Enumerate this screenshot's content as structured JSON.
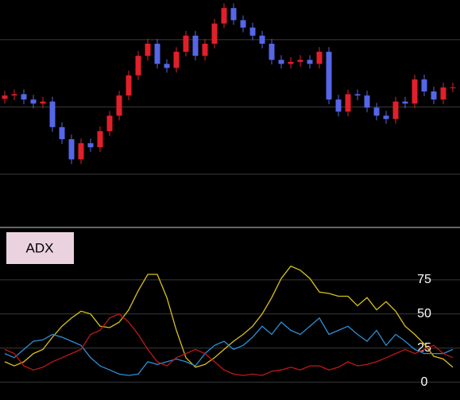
{
  "chart_data": [
    {
      "type": "candlestick",
      "open": [
        212,
        217,
        219,
        211,
        205,
        208,
        170,
        152,
        122,
        146,
        140,
        164,
        187,
        217,
        247,
        276,
        294,
        264,
        258,
        282,
        306,
        276,
        294,
        324,
        347,
        329,
        318,
        306,
        294,
        270,
        264,
        267,
        270,
        264,
        282,
        211,
        193,
        219,
        217,
        199,
        187,
        182,
        208,
        205,
        241,
        223,
        211,
        229
      ],
      "high": [
        224,
        226,
        226,
        218,
        215,
        215,
        177,
        159,
        153,
        153,
        171,
        194,
        224,
        254,
        283,
        301,
        301,
        271,
        289,
        313,
        313,
        301,
        331,
        354,
        354,
        336,
        325,
        313,
        301,
        277,
        274,
        277,
        277,
        289,
        289,
        218,
        226,
        226,
        224,
        206,
        194,
        215,
        215,
        248,
        248,
        230,
        236,
        236
      ],
      "low": [
        205,
        210,
        204,
        198,
        198,
        163,
        145,
        115,
        115,
        133,
        133,
        157,
        180,
        210,
        240,
        269,
        257,
        251,
        251,
        275,
        269,
        269,
        287,
        317,
        322,
        311,
        299,
        287,
        263,
        257,
        257,
        260,
        257,
        257,
        204,
        186,
        186,
        210,
        192,
        180,
        175,
        175,
        198,
        198,
        216,
        204,
        204,
        222
      ],
      "close": [
        217,
        219,
        211,
        205,
        208,
        170,
        152,
        122,
        146,
        140,
        164,
        187,
        217,
        247,
        276,
        294,
        264,
        258,
        282,
        306,
        276,
        294,
        324,
        347,
        329,
        318,
        306,
        294,
        270,
        264,
        267,
        270,
        264,
        282,
        211,
        193,
        219,
        217,
        199,
        187,
        182,
        208,
        205,
        241,
        223,
        211,
        229,
        229
      ],
      "up_color": "#e0202a",
      "down_color": "#5566e6",
      "ylim": [
        22,
        359
      ],
      "yticks": [
        100,
        200,
        300
      ],
      "grid": true
    },
    {
      "type": "line",
      "title": "ADX",
      "series": [
        {
          "color": "#d8c21a",
          "values": [
            15,
            12,
            15,
            21,
            24,
            33,
            41,
            47,
            52,
            50,
            41,
            40,
            44,
            53,
            67,
            79,
            79,
            62,
            38,
            18,
            11,
            13,
            18,
            24,
            30,
            35,
            41,
            50,
            62,
            76,
            85,
            82,
            76,
            66,
            65,
            63,
            63,
            56,
            62,
            53,
            59,
            52,
            41,
            35,
            28,
            19,
            17,
            11
          ]
        },
        {
          "color": "#2b8fd6",
          "values": [
            21,
            18,
            24,
            30,
            31,
            35,
            33,
            30,
            27,
            18,
            12,
            9,
            6,
            5,
            6,
            15,
            13,
            15,
            17,
            15,
            12,
            21,
            27,
            30,
            24,
            27,
            33,
            41,
            35,
            44,
            38,
            35,
            41,
            47,
            35,
            38,
            41,
            35,
            30,
            38,
            27,
            35,
            30,
            24,
            21,
            21,
            21,
            24
          ]
        },
        {
          "color": "#c01818",
          "values": [
            24,
            21,
            12,
            9,
            11,
            15,
            18,
            21,
            24,
            35,
            38,
            47,
            50,
            44,
            35,
            24,
            15,
            12,
            18,
            21,
            24,
            21,
            15,
            9,
            6,
            5,
            6,
            5,
            8,
            9,
            11,
            9,
            12,
            12,
            9,
            11,
            15,
            12,
            13,
            15,
            18,
            21,
            24,
            21,
            24,
            27,
            21,
            18
          ]
        }
      ],
      "ylim": [
        -13,
        111
      ],
      "yticks": [
        0,
        25,
        50,
        75
      ],
      "grid": true
    }
  ]
}
